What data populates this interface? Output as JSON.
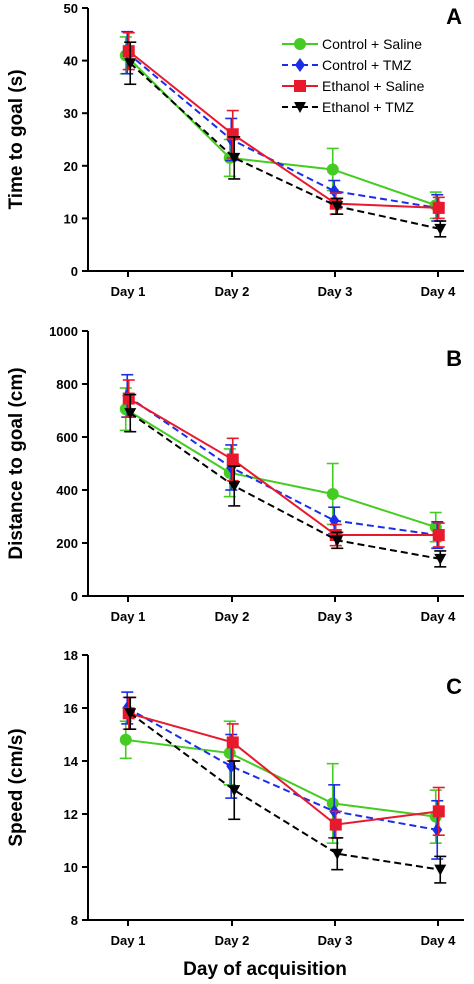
{
  "xlabel": "Day of acquisition",
  "legend": [
    {
      "name": "Control + Saline",
      "color": "#44cc22",
      "marker": "circle",
      "dash": "solid"
    },
    {
      "name": "Control + TMZ",
      "color": "#1a2ee8",
      "marker": "diamond",
      "dash": "dash"
    },
    {
      "name": "Ethanol + Saline",
      "color": "#e8192c",
      "marker": "square",
      "dash": "solid"
    },
    {
      "name": "Ethanol + TMZ",
      "color": "#000000",
      "marker": "triangle-down",
      "dash": "dash"
    }
  ],
  "chart_data": [
    {
      "type": "line",
      "panel": "A",
      "ylabel": "Time to goal (s)",
      "categories": [
        "Day 1",
        "Day 2",
        "Day 3",
        "Day 4"
      ],
      "ylim": [
        0,
        50
      ],
      "yticks": [
        0,
        10,
        20,
        30,
        40,
        50
      ],
      "legend_position": "top-right",
      "series": [
        {
          "name": "Control + Saline",
          "values": [
            41,
            21.5,
            19.3,
            12.5
          ],
          "errors": [
            3.5,
            3.5,
            4,
            2.5
          ]
        },
        {
          "name": "Control + TMZ",
          "values": [
            41.5,
            25,
            15.2,
            12
          ],
          "errors": [
            4,
            4,
            2,
            2.5
          ]
        },
        {
          "name": "Ethanol + Saline",
          "values": [
            41.8,
            26,
            12.8,
            12
          ],
          "errors": [
            3.5,
            4.5,
            2,
            2
          ]
        },
        {
          "name": "Ethanol + TMZ",
          "values": [
            39.5,
            21.5,
            12.3,
            8
          ],
          "errors": [
            4,
            4,
            1.5,
            1.5
          ]
        }
      ]
    },
    {
      "type": "line",
      "panel": "B",
      "ylabel": "Distance to goal (cm)",
      "categories": [
        "Day 1",
        "Day 2",
        "Day 3",
        "Day 4"
      ],
      "ylim": [
        0,
        1000
      ],
      "yticks": [
        0,
        200,
        400,
        600,
        800,
        1000
      ],
      "series": [
        {
          "name": "Control + Saline",
          "values": [
            705,
            465,
            385,
            260
          ],
          "errors": [
            80,
            90,
            115,
            55
          ]
        },
        {
          "name": "Control + TMZ",
          "values": [
            755,
            485,
            285,
            230
          ],
          "errors": [
            80,
            85,
            50,
            50
          ]
        },
        {
          "name": "Ethanol + Saline",
          "values": [
            745,
            515,
            230,
            230
          ],
          "errors": [
            70,
            80,
            40,
            45
          ]
        },
        {
          "name": "Ethanol + TMZ",
          "values": [
            690,
            415,
            210,
            140
          ],
          "errors": [
            70,
            75,
            30,
            30
          ]
        }
      ]
    },
    {
      "type": "line",
      "panel": "C",
      "ylabel": "Speed (cm/s)",
      "categories": [
        "Day 1",
        "Day 2",
        "Day 3",
        "Day 4"
      ],
      "ylim": [
        8,
        18
      ],
      "yticks": [
        8,
        10,
        12,
        14,
        16,
        18
      ],
      "series": [
        {
          "name": "Control + Saline",
          "values": [
            14.8,
            14.3,
            12.4,
            11.9
          ],
          "errors": [
            0.7,
            1.2,
            1.5,
            1.0
          ]
        },
        {
          "name": "Control + TMZ",
          "values": [
            16.0,
            13.8,
            12.1,
            11.4
          ],
          "errors": [
            0.6,
            1.2,
            1.0,
            1.1
          ]
        },
        {
          "name": "Ethanol + Saline",
          "values": [
            15.8,
            14.7,
            11.6,
            12.1
          ],
          "errors": [
            0.6,
            0.7,
            0.5,
            0.9
          ]
        },
        {
          "name": "Ethanol + TMZ",
          "values": [
            15.8,
            12.9,
            10.5,
            9.9
          ],
          "errors": [
            0.6,
            1.1,
            0.6,
            0.5
          ]
        }
      ]
    }
  ]
}
